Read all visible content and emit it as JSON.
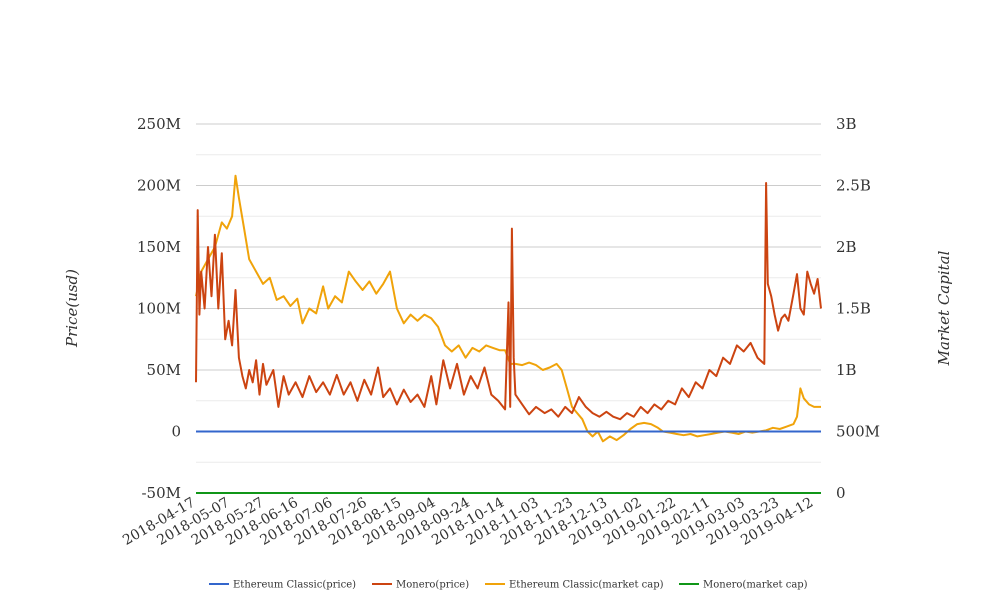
{
  "chart_data": {
    "type": "line",
    "title": "",
    "ylabel": "Price(usd)",
    "y2label": "Market Capital",
    "ylim": [
      -50000000,
      250000000
    ],
    "y2lim": [
      0,
      3000000000
    ],
    "yticks": [
      "-50M",
      "0",
      "50M",
      "100M",
      "150M",
      "200M",
      "250M"
    ],
    "y2ticks": [
      "0",
      "500M",
      "1B",
      "1.5B",
      "2B",
      "2.5B",
      "3B"
    ],
    "xticks": [
      "2018-04-17",
      "2018-05-07",
      "2018-05-27",
      "2018-06-16",
      "2018-07-06",
      "2018-07-26",
      "2018-08-15",
      "2018-09-04",
      "2018-09-24",
      "2018-10-14",
      "2018-11-03",
      "2018-11-23",
      "2018-12-13",
      "2019-01-02",
      "2019-01-22",
      "2019-02-11",
      "2019-03-03",
      "2019-03-23",
      "2019-04-12"
    ],
    "grid": true,
    "legend_position": "bottom",
    "x_start": "2018-04-17",
    "x_end": "2019-04-16",
    "series": [
      {
        "name": "Ethereum Classic(price)",
        "color": "#3366cc",
        "axis": "left",
        "points": [
          [
            "2018-04-17",
            12
          ],
          [
            "2018-09-01",
            14
          ],
          [
            "2019-01-01",
            5
          ],
          [
            "2019-04-16",
            6
          ]
        ]
      },
      {
        "name": "Monero(price)",
        "color": "#cc4411",
        "axis": "left",
        "points": [
          [
            "2018-04-17",
            40000000
          ],
          [
            "2018-04-18",
            180000000
          ],
          [
            "2018-04-19",
            95000000
          ],
          [
            "2018-04-20",
            130000000
          ],
          [
            "2018-04-22",
            100000000
          ],
          [
            "2018-04-24",
            150000000
          ],
          [
            "2018-04-26",
            110000000
          ],
          [
            "2018-04-28",
            160000000
          ],
          [
            "2018-04-30",
            100000000
          ],
          [
            "2018-05-02",
            145000000
          ],
          [
            "2018-05-04",
            75000000
          ],
          [
            "2018-05-06",
            90000000
          ],
          [
            "2018-05-08",
            70000000
          ],
          [
            "2018-05-10",
            115000000
          ],
          [
            "2018-05-12",
            60000000
          ],
          [
            "2018-05-14",
            45000000
          ],
          [
            "2018-05-16",
            35000000
          ],
          [
            "2018-05-18",
            50000000
          ],
          [
            "2018-05-20",
            40000000
          ],
          [
            "2018-05-22",
            58000000
          ],
          [
            "2018-05-24",
            30000000
          ],
          [
            "2018-05-26",
            55000000
          ],
          [
            "2018-05-28",
            38000000
          ],
          [
            "2018-06-01",
            50000000
          ],
          [
            "2018-06-04",
            20000000
          ],
          [
            "2018-06-07",
            45000000
          ],
          [
            "2018-06-10",
            30000000
          ],
          [
            "2018-06-14",
            40000000
          ],
          [
            "2018-06-18",
            28000000
          ],
          [
            "2018-06-22",
            45000000
          ],
          [
            "2018-06-26",
            32000000
          ],
          [
            "2018-06-30",
            40000000
          ],
          [
            "2018-07-04",
            30000000
          ],
          [
            "2018-07-08",
            46000000
          ],
          [
            "2018-07-12",
            30000000
          ],
          [
            "2018-07-16",
            40000000
          ],
          [
            "2018-07-20",
            25000000
          ],
          [
            "2018-07-24",
            42000000
          ],
          [
            "2018-07-28",
            30000000
          ],
          [
            "2018-08-01",
            52000000
          ],
          [
            "2018-08-04",
            28000000
          ],
          [
            "2018-08-08",
            35000000
          ],
          [
            "2018-08-12",
            22000000
          ],
          [
            "2018-08-16",
            34000000
          ],
          [
            "2018-08-20",
            24000000
          ],
          [
            "2018-08-24",
            30000000
          ],
          [
            "2018-08-28",
            20000000
          ],
          [
            "2018-09-01",
            45000000
          ],
          [
            "2018-09-04",
            22000000
          ],
          [
            "2018-09-08",
            58000000
          ],
          [
            "2018-09-12",
            35000000
          ],
          [
            "2018-09-16",
            55000000
          ],
          [
            "2018-09-20",
            30000000
          ],
          [
            "2018-09-24",
            45000000
          ],
          [
            "2018-09-28",
            35000000
          ],
          [
            "2018-10-02",
            52000000
          ],
          [
            "2018-10-06",
            30000000
          ],
          [
            "2018-10-10",
            25000000
          ],
          [
            "2018-10-14",
            18000000
          ],
          [
            "2018-10-16",
            105000000
          ],
          [
            "2018-10-17",
            20000000
          ],
          [
            "2018-10-18",
            165000000
          ],
          [
            "2018-10-19",
            60000000
          ],
          [
            "2018-10-20",
            30000000
          ],
          [
            "2018-10-24",
            22000000
          ],
          [
            "2018-10-28",
            14000000
          ],
          [
            "2018-11-01",
            20000000
          ],
          [
            "2018-11-06",
            15000000
          ],
          [
            "2018-11-10",
            18000000
          ],
          [
            "2018-11-14",
            12000000
          ],
          [
            "2018-11-18",
            20000000
          ],
          [
            "2018-11-22",
            15000000
          ],
          [
            "2018-11-26",
            28000000
          ],
          [
            "2018-11-30",
            20000000
          ],
          [
            "2018-12-04",
            15000000
          ],
          [
            "2018-12-08",
            12000000
          ],
          [
            "2018-12-12",
            16000000
          ],
          [
            "2018-12-16",
            12000000
          ],
          [
            "2018-12-20",
            10000000
          ],
          [
            "2018-12-24",
            15000000
          ],
          [
            "2018-12-28",
            12000000
          ],
          [
            "2019-01-01",
            20000000
          ],
          [
            "2019-01-05",
            15000000
          ],
          [
            "2019-01-09",
            22000000
          ],
          [
            "2019-01-13",
            18000000
          ],
          [
            "2019-01-17",
            25000000
          ],
          [
            "2019-01-21",
            22000000
          ],
          [
            "2019-01-25",
            35000000
          ],
          [
            "2019-01-29",
            28000000
          ],
          [
            "2019-02-02",
            40000000
          ],
          [
            "2019-02-06",
            35000000
          ],
          [
            "2019-02-10",
            50000000
          ],
          [
            "2019-02-14",
            45000000
          ],
          [
            "2019-02-18",
            60000000
          ],
          [
            "2019-02-22",
            55000000
          ],
          [
            "2019-02-26",
            70000000
          ],
          [
            "2019-03-02",
            65000000
          ],
          [
            "2019-03-06",
            72000000
          ],
          [
            "2019-03-10",
            60000000
          ],
          [
            "2019-03-14",
            55000000
          ],
          [
            "2019-03-15",
            202000000
          ],
          [
            "2019-03-16",
            120000000
          ],
          [
            "2019-03-18",
            110000000
          ],
          [
            "2019-03-20",
            95000000
          ],
          [
            "2019-03-22",
            82000000
          ],
          [
            "2019-03-24",
            92000000
          ],
          [
            "2019-03-26",
            95000000
          ],
          [
            "2019-03-28",
            90000000
          ],
          [
            "2019-03-31",
            112000000
          ],
          [
            "2019-04-02",
            128000000
          ],
          [
            "2019-04-04",
            100000000
          ],
          [
            "2019-04-06",
            95000000
          ],
          [
            "2019-04-08",
            130000000
          ],
          [
            "2019-04-10",
            120000000
          ],
          [
            "2019-04-12",
            112000000
          ],
          [
            "2019-04-14",
            124000000
          ],
          [
            "2019-04-16",
            100000000
          ]
        ]
      },
      {
        "name": "Ethereum Classic(market cap)",
        "color": "#f0a30a",
        "axis": "right",
        "points": [
          [
            "2018-04-17",
            1600000000
          ],
          [
            "2018-04-20",
            1800000000
          ],
          [
            "2018-04-24",
            1900000000
          ],
          [
            "2018-04-28",
            2000000000
          ],
          [
            "2018-05-02",
            2200000000
          ],
          [
            "2018-05-05",
            2150000000
          ],
          [
            "2018-05-08",
            2250000000
          ],
          [
            "2018-05-10",
            2580000000
          ],
          [
            "2018-05-12",
            2400000000
          ],
          [
            "2018-05-15",
            2150000000
          ],
          [
            "2018-05-18",
            1900000000
          ],
          [
            "2018-05-22",
            1800000000
          ],
          [
            "2018-05-26",
            1700000000
          ],
          [
            "2018-05-30",
            1750000000
          ],
          [
            "2018-06-03",
            1570000000
          ],
          [
            "2018-06-07",
            1600000000
          ],
          [
            "2018-06-11",
            1520000000
          ],
          [
            "2018-06-15",
            1580000000
          ],
          [
            "2018-06-18",
            1380000000
          ],
          [
            "2018-06-22",
            1500000000
          ],
          [
            "2018-06-26",
            1460000000
          ],
          [
            "2018-06-30",
            1680000000
          ],
          [
            "2018-07-03",
            1500000000
          ],
          [
            "2018-07-07",
            1600000000
          ],
          [
            "2018-07-11",
            1550000000
          ],
          [
            "2018-07-15",
            1800000000
          ],
          [
            "2018-07-19",
            1720000000
          ],
          [
            "2018-07-23",
            1650000000
          ],
          [
            "2018-07-27",
            1720000000
          ],
          [
            "2018-07-31",
            1620000000
          ],
          [
            "2018-08-04",
            1700000000
          ],
          [
            "2018-08-08",
            1800000000
          ],
          [
            "2018-08-12",
            1500000000
          ],
          [
            "2018-08-16",
            1380000000
          ],
          [
            "2018-08-20",
            1450000000
          ],
          [
            "2018-08-24",
            1400000000
          ],
          [
            "2018-08-28",
            1450000000
          ],
          [
            "2018-09-01",
            1420000000
          ],
          [
            "2018-09-05",
            1350000000
          ],
          [
            "2018-09-09",
            1200000000
          ],
          [
            "2018-09-13",
            1150000000
          ],
          [
            "2018-09-17",
            1200000000
          ],
          [
            "2018-09-21",
            1100000000
          ],
          [
            "2018-09-25",
            1180000000
          ],
          [
            "2018-09-29",
            1150000000
          ],
          [
            "2018-10-03",
            1200000000
          ],
          [
            "2018-10-07",
            1180000000
          ],
          [
            "2018-10-11",
            1160000000
          ],
          [
            "2018-10-14",
            1160000000
          ],
          [
            "2018-10-17",
            1050000000
          ],
          [
            "2018-10-20",
            1050000000
          ],
          [
            "2018-10-24",
            1040000000
          ],
          [
            "2018-10-28",
            1060000000
          ],
          [
            "2018-11-01",
            1040000000
          ],
          [
            "2018-11-05",
            1000000000
          ],
          [
            "2018-11-09",
            1020000000
          ],
          [
            "2018-11-13",
            1050000000
          ],
          [
            "2018-11-16",
            1000000000
          ],
          [
            "2018-11-19",
            850000000
          ],
          [
            "2018-11-22",
            700000000
          ],
          [
            "2018-11-25",
            650000000
          ],
          [
            "2018-11-28",
            600000000
          ],
          [
            "2018-12-01",
            500000000
          ],
          [
            "2018-12-04",
            460000000
          ],
          [
            "2018-12-07",
            500000000
          ],
          [
            "2018-12-10",
            420000000
          ],
          [
            "2018-12-14",
            460000000
          ],
          [
            "2018-12-18",
            430000000
          ],
          [
            "2018-12-22",
            470000000
          ],
          [
            "2018-12-26",
            520000000
          ],
          [
            "2018-12-30",
            560000000
          ],
          [
            "2019-01-03",
            570000000
          ],
          [
            "2019-01-07",
            560000000
          ],
          [
            "2019-01-11",
            530000000
          ],
          [
            "2019-01-14",
            500000000
          ],
          [
            "2019-01-18",
            490000000
          ],
          [
            "2019-01-22",
            480000000
          ],
          [
            "2019-01-26",
            470000000
          ],
          [
            "2019-01-30",
            480000000
          ],
          [
            "2019-02-03",
            460000000
          ],
          [
            "2019-02-07",
            470000000
          ],
          [
            "2019-02-11",
            480000000
          ],
          [
            "2019-02-15",
            490000000
          ],
          [
            "2019-02-19",
            500000000
          ],
          [
            "2019-02-23",
            490000000
          ],
          [
            "2019-02-27",
            480000000
          ],
          [
            "2019-03-03",
            500000000
          ],
          [
            "2019-03-07",
            490000000
          ],
          [
            "2019-03-11",
            500000000
          ],
          [
            "2019-03-15",
            510000000
          ],
          [
            "2019-03-19",
            530000000
          ],
          [
            "2019-03-23",
            520000000
          ],
          [
            "2019-03-27",
            540000000
          ],
          [
            "2019-03-31",
            560000000
          ],
          [
            "2019-04-02",
            620000000
          ],
          [
            "2019-04-04",
            850000000
          ],
          [
            "2019-04-06",
            770000000
          ],
          [
            "2019-04-09",
            720000000
          ],
          [
            "2019-04-12",
            700000000
          ],
          [
            "2019-04-16",
            700000000
          ]
        ]
      },
      {
        "name": "Monero(market cap)",
        "color": "#109618",
        "axis": "right",
        "points": [
          [
            "2018-04-17",
            1000
          ],
          [
            "2019-04-16",
            1000
          ]
        ]
      }
    ]
  }
}
